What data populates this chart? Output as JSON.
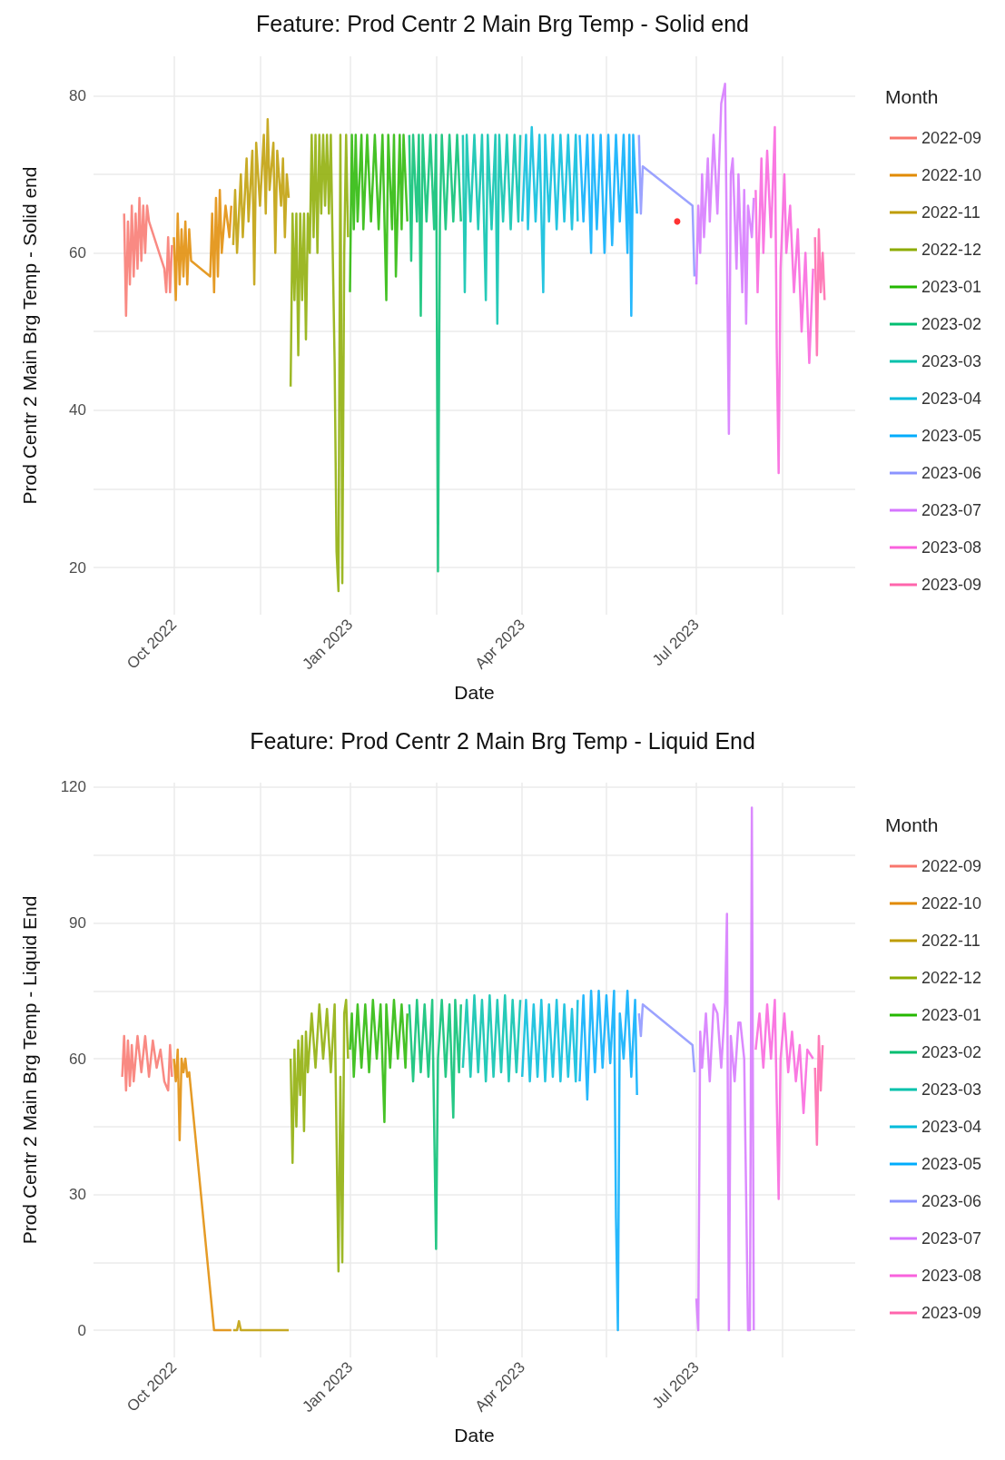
{
  "chart_data": [
    {
      "type": "line",
      "title": "Feature: Prod Centr 2 Main Brg Temp - Solid end",
      "xlabel": "Date",
      "ylabel": "Prod Centr 2 Main Brg Temp - Solid end",
      "legend_title": "Month",
      "legend": "right",
      "grid": true,
      "xlim": [
        "2022-08-20",
        "2023-09-22"
      ],
      "xticks": [
        {
          "value": "2022-10-01",
          "label": "Oct 2022"
        },
        {
          "value": "2022-11-15",
          "label": null
        },
        {
          "value": "2023-01-01",
          "label": "Jan 2023"
        },
        {
          "value": "2023-02-15",
          "label": null
        },
        {
          "value": "2023-04-01",
          "label": "Apr 2023"
        },
        {
          "value": "2023-05-15",
          "label": null
        },
        {
          "value": "2023-07-01",
          "label": "Jul 2023"
        },
        {
          "value": "2023-08-15",
          "label": null
        }
      ],
      "ylim": [
        14,
        85
      ],
      "yticks": [
        20,
        {
          "value": 30,
          "label": null
        },
        40,
        {
          "value": 50,
          "label": null
        },
        60,
        {
          "value": 70,
          "label": null
        },
        80
      ],
      "series": [
        {
          "name": "2022-09",
          "color": "#f8766d",
          "x": [
            "2022-09-05",
            "2022-09-06",
            "2022-09-07",
            "2022-09-08",
            "2022-09-09",
            "2022-09-10",
            "2022-09-11",
            "2022-09-12",
            "2022-09-13",
            "2022-09-14",
            "2022-09-15",
            "2022-09-16",
            "2022-09-17",
            "2022-09-18",
            "2022-09-26",
            "2022-09-27",
            "2022-09-28",
            "2022-09-29",
            "2022-09-30"
          ],
          "values": [
            65,
            52,
            64,
            56,
            66,
            57,
            65,
            58,
            67,
            59,
            66,
            60,
            66,
            64,
            58,
            55,
            62,
            55,
            61
          ]
        },
        {
          "name": "2022-10",
          "color": "#e18a00",
          "x": [
            "2022-10-01",
            "2022-10-02",
            "2022-10-03",
            "2022-10-04",
            "2022-10-05",
            "2022-10-06",
            "2022-10-07",
            "2022-10-08",
            "2022-10-09",
            "2022-10-10",
            "2022-10-20",
            "2022-10-21",
            "2022-10-22",
            "2022-10-23",
            "2022-10-24",
            "2022-10-25",
            "2022-10-26",
            "2022-10-28",
            "2022-10-30",
            "2022-10-31"
          ],
          "values": [
            62,
            54,
            65,
            56,
            63,
            57,
            64,
            56,
            63,
            59,
            57,
            65,
            55,
            67,
            57,
            68,
            60,
            66,
            62,
            66
          ]
        },
        {
          "name": "2022-11",
          "color": "#be9c00",
          "x": [
            "2022-11-01",
            "2022-11-02",
            "2022-11-03",
            "2022-11-05",
            "2022-11-06",
            "2022-11-08",
            "2022-11-09",
            "2022-11-11",
            "2022-11-12",
            "2022-11-13",
            "2022-11-15",
            "2022-11-17",
            "2022-11-18",
            "2022-11-19",
            "2022-11-20",
            "2022-11-22",
            "2022-11-23",
            "2022-11-24",
            "2022-11-26",
            "2022-11-27",
            "2022-11-28",
            "2022-11-29",
            "2022-11-30"
          ],
          "values": [
            61,
            68,
            60,
            70,
            62,
            72,
            64,
            73,
            56,
            74,
            66,
            75,
            65,
            77,
            68,
            74,
            60,
            73,
            66,
            72,
            62,
            70,
            67
          ]
        },
        {
          "name": "2022-12",
          "color": "#8cab00",
          "x": [
            "2022-12-01",
            "2022-12-02",
            "2022-12-03",
            "2022-12-04",
            "2022-12-05",
            "2022-12-06",
            "2022-12-07",
            "2022-12-08",
            "2022-12-09",
            "2022-12-10",
            "2022-12-11",
            "2022-12-12",
            "2022-12-13",
            "2022-12-14",
            "2022-12-15",
            "2022-12-16",
            "2022-12-17",
            "2022-12-18",
            "2022-12-19",
            "2022-12-20",
            "2022-12-21",
            "2022-12-22",
            "2022-12-23",
            "2022-12-24",
            "2022-12-25",
            "2022-12-26",
            "2022-12-27",
            "2022-12-28",
            "2022-12-29",
            "2022-12-30",
            "2022-12-31"
          ],
          "values": [
            43,
            65,
            54,
            65,
            47,
            65,
            54,
            65,
            49,
            65,
            60,
            75,
            62,
            75,
            60,
            75,
            65,
            75,
            66,
            75,
            65,
            75,
            60,
            46,
            22,
            17,
            75,
            18,
            60,
            75,
            62
          ]
        },
        {
          "name": "2023-01",
          "color": "#24b700",
          "x": [
            "2023-01-01",
            "2023-01-02",
            "2023-01-03",
            "2023-01-04",
            "2023-01-05",
            "2023-01-07",
            "2023-01-08",
            "2023-01-10",
            "2023-01-12",
            "2023-01-14",
            "2023-01-16",
            "2023-01-18",
            "2023-01-20",
            "2023-01-21",
            "2023-01-23",
            "2023-01-24",
            "2023-01-25",
            "2023-01-27",
            "2023-01-28",
            "2023-01-29",
            "2023-01-31"
          ],
          "values": [
            55,
            75,
            63,
            75,
            64,
            75,
            63,
            75,
            64,
            75,
            63,
            75,
            54,
            75,
            63,
            75,
            57,
            75,
            63,
            75,
            64
          ]
        },
        {
          "name": "2023-02",
          "color": "#00be70",
          "x": [
            "2023-02-01",
            "2023-02-02",
            "2023-02-03",
            "2023-02-05",
            "2023-02-06",
            "2023-02-07",
            "2023-02-08",
            "2023-02-10",
            "2023-02-12",
            "2023-02-14",
            "2023-02-15",
            "2023-02-16",
            "2023-02-17",
            "2023-02-18",
            "2023-02-20",
            "2023-02-22",
            "2023-02-24",
            "2023-02-26",
            "2023-02-28"
          ],
          "values": [
            75,
            59,
            75,
            64,
            75,
            52,
            75,
            64,
            75,
            63,
            75,
            19.5,
            64,
            75,
            63,
            75,
            64,
            75,
            64
          ]
        },
        {
          "name": "2023-03",
          "color": "#00c1ab",
          "x": [
            "2023-03-01",
            "2023-03-02",
            "2023-03-03",
            "2023-03-05",
            "2023-03-07",
            "2023-03-09",
            "2023-03-11",
            "2023-03-13",
            "2023-03-14",
            "2023-03-16",
            "2023-03-18",
            "2023-03-19",
            "2023-03-20",
            "2023-03-22",
            "2023-03-24",
            "2023-03-26",
            "2023-03-28",
            "2023-03-30",
            "2023-03-31"
          ],
          "values": [
            75,
            55,
            75,
            64,
            75,
            63,
            75,
            54,
            75,
            63,
            75,
            51,
            75,
            64,
            75,
            63,
            75,
            64,
            75
          ]
        },
        {
          "name": "2023-04",
          "color": "#00bbda",
          "x": [
            "2023-04-01",
            "2023-04-03",
            "2023-04-04",
            "2023-04-06",
            "2023-04-08",
            "2023-04-10",
            "2023-04-12",
            "2023-04-13",
            "2023-04-15",
            "2023-04-17",
            "2023-04-19",
            "2023-04-21",
            "2023-04-23",
            "2023-04-25",
            "2023-04-27",
            "2023-04-29",
            "2023-04-30"
          ],
          "values": [
            64,
            75,
            63,
            76,
            64,
            75,
            55,
            75,
            64,
            75,
            63,
            75,
            64,
            75,
            63,
            75,
            64
          ]
        },
        {
          "name": "2023-05",
          "color": "#00acfc",
          "x": [
            "2023-05-01",
            "2023-05-03",
            "2023-05-05",
            "2023-05-07",
            "2023-05-08",
            "2023-05-10",
            "2023-05-12",
            "2023-05-14",
            "2023-05-16",
            "2023-05-18",
            "2023-05-20",
            "2023-05-22",
            "2023-05-24",
            "2023-05-26",
            "2023-05-27",
            "2023-05-28",
            "2023-05-29",
            "2023-05-31"
          ],
          "values": [
            75,
            64,
            75,
            60,
            75,
            63,
            75,
            60,
            75,
            61,
            75,
            64,
            75,
            60,
            75,
            52,
            75,
            65
          ]
        },
        {
          "name": "2023-06",
          "color": "#8b93ff",
          "x": [
            "2023-06-01",
            "2023-06-02",
            "2023-06-03",
            "2023-06-29",
            "2023-06-30"
          ],
          "values": [
            75,
            65,
            71,
            66,
            57
          ]
        },
        {
          "name": "2023-07",
          "color": "#d575fe",
          "x": [
            "2023-07-01",
            "2023-07-02",
            "2023-07-03",
            "2023-07-04",
            "2023-07-05",
            "2023-07-07",
            "2023-07-08",
            "2023-07-10",
            "2023-07-12",
            "2023-07-14",
            "2023-07-16",
            "2023-07-17",
            "2023-07-18",
            "2023-07-19",
            "2023-07-20",
            "2023-07-22",
            "2023-07-23",
            "2023-07-25",
            "2023-07-26",
            "2023-07-27",
            "2023-07-28",
            "2023-07-30",
            "2023-07-31"
          ],
          "values": [
            56,
            66,
            60,
            70,
            62,
            72,
            64,
            75,
            65,
            79,
            81.5,
            60,
            37,
            70,
            72,
            58,
            70,
            55,
            68,
            51,
            66,
            62,
            67
          ]
        },
        {
          "name": "2023-08",
          "color": "#f962dd",
          "x": [
            "2023-08-01",
            "2023-08-02",
            "2023-08-04",
            "2023-08-05",
            "2023-08-07",
            "2023-08-09",
            "2023-08-11",
            "2023-08-12",
            "2023-08-13",
            "2023-08-14",
            "2023-08-16",
            "2023-08-17",
            "2023-08-19",
            "2023-08-21",
            "2023-08-23",
            "2023-08-25",
            "2023-08-27",
            "2023-08-29",
            "2023-08-31"
          ],
          "values": [
            68,
            55,
            72,
            60,
            73,
            62,
            76,
            48,
            32,
            58,
            70,
            60,
            66,
            55,
            63,
            50,
            60,
            46,
            58
          ]
        },
        {
          "name": "2023-09",
          "color": "#ff65ac",
          "x": [
            "2023-09-01",
            "2023-09-02",
            "2023-09-03",
            "2023-09-04",
            "2023-09-05",
            "2023-09-06"
          ],
          "values": [
            62,
            47,
            63,
            55,
            60,
            54
          ]
        },
        {
          "type": "scatter",
          "color": "#ff0000",
          "x": [
            "2023-06-21"
          ],
          "values": [
            64
          ]
        }
      ]
    },
    {
      "type": "line",
      "title": "Feature: Prod Centr 2 Main Brg Temp - Liquid End",
      "xlabel": "Date",
      "ylabel": "Prod Centr 2 Main Brg Temp - Liquid End",
      "legend_title": "Month",
      "legend": "right",
      "grid": true,
      "xlim": [
        "2022-08-20",
        "2023-09-22"
      ],
      "xticks": [
        {
          "value": "2022-10-01",
          "label": "Oct 2022"
        },
        {
          "value": "2022-11-15",
          "label": null
        },
        {
          "value": "2023-01-01",
          "label": "Jan 2023"
        },
        {
          "value": "2023-02-15",
          "label": null
        },
        {
          "value": "2023-04-01",
          "label": "Apr 2023"
        },
        {
          "value": "2023-05-15",
          "label": null
        },
        {
          "value": "2023-07-01",
          "label": "Jul 2023"
        },
        {
          "value": "2023-08-15",
          "label": null
        }
      ],
      "ylim": [
        -6,
        121
      ],
      "yticks": [
        0,
        {
          "value": 15,
          "label": null
        },
        30,
        {
          "value": 45,
          "label": null
        },
        60,
        {
          "value": 75,
          "label": null
        },
        90,
        {
          "value": 105,
          "label": null
        },
        120
      ],
      "series": [
        {
          "name": "2022-09",
          "color": "#f8766d",
          "x": [
            "2022-09-04",
            "2022-09-05",
            "2022-09-06",
            "2022-09-07",
            "2022-09-08",
            "2022-09-09",
            "2022-09-10",
            "2022-09-12",
            "2022-09-14",
            "2022-09-16",
            "2022-09-18",
            "2022-09-20",
            "2022-09-22",
            "2022-09-24",
            "2022-09-26",
            "2022-09-28",
            "2022-09-29",
            "2022-09-30"
          ],
          "values": [
            56,
            65,
            53,
            64,
            54,
            63,
            55,
            65,
            57,
            65,
            56,
            64,
            58,
            62,
            55,
            53,
            63,
            56
          ]
        },
        {
          "name": "2022-10",
          "color": "#e18a00",
          "x": [
            "2022-10-01",
            "2022-10-02",
            "2022-10-03",
            "2022-10-04",
            "2022-10-05",
            "2022-10-06",
            "2022-10-07",
            "2022-10-08",
            "2022-10-09",
            "2022-10-22",
            "2022-10-31"
          ],
          "values": [
            60,
            55,
            62,
            42,
            60,
            57,
            60,
            56,
            57,
            0,
            0
          ]
        },
        {
          "name": "2022-11",
          "color": "#be9c00",
          "x": [
            "2022-11-01",
            "2022-11-03",
            "2022-11-04",
            "2022-11-05",
            "2022-11-30"
          ],
          "values": [
            0,
            0,
            2,
            0,
            0
          ]
        },
        {
          "name": "2022-12",
          "color": "#8cab00",
          "x": [
            "2022-12-01",
            "2022-12-02",
            "2022-12-03",
            "2022-12-04",
            "2022-12-05",
            "2022-12-06",
            "2022-12-07",
            "2022-12-08",
            "2022-12-09",
            "2022-12-10",
            "2022-12-12",
            "2022-12-14",
            "2022-12-16",
            "2022-12-18",
            "2022-12-20",
            "2022-12-22",
            "2022-12-24",
            "2022-12-26",
            "2022-12-27",
            "2022-12-28",
            "2022-12-29",
            "2022-12-30",
            "2022-12-31"
          ],
          "values": [
            60,
            37,
            62,
            45,
            64,
            52,
            65,
            44,
            66,
            57,
            70,
            58,
            72,
            60,
            71,
            57,
            72,
            13,
            56,
            15,
            70,
            73,
            60
          ]
        },
        {
          "name": "2023-01",
          "color": "#24b700",
          "x": [
            "2023-01-01",
            "2023-01-02",
            "2023-01-03",
            "2023-01-05",
            "2023-01-07",
            "2023-01-09",
            "2023-01-11",
            "2023-01-13",
            "2023-01-15",
            "2023-01-17",
            "2023-01-19",
            "2023-01-20",
            "2023-01-22",
            "2023-01-24",
            "2023-01-26",
            "2023-01-28",
            "2023-01-30",
            "2023-01-31"
          ],
          "values": [
            62,
            70,
            56,
            72,
            58,
            72,
            57,
            73,
            60,
            72,
            46,
            72,
            58,
            73,
            60,
            72,
            58,
            70
          ]
        },
        {
          "name": "2023-02",
          "color": "#00be70",
          "x": [
            "2023-02-01",
            "2023-02-03",
            "2023-02-05",
            "2023-02-07",
            "2023-02-09",
            "2023-02-11",
            "2023-02-13",
            "2023-02-15",
            "2023-02-16",
            "2023-02-18",
            "2023-02-20",
            "2023-02-22",
            "2023-02-24",
            "2023-02-25",
            "2023-02-27",
            "2023-02-28"
          ],
          "values": [
            72,
            55,
            73,
            57,
            72,
            56,
            73,
            18,
            60,
            73,
            56,
            72,
            47,
            73,
            57,
            72
          ]
        },
        {
          "name": "2023-03",
          "color": "#00c1ab",
          "x": [
            "2023-03-01",
            "2023-03-03",
            "2023-03-05",
            "2023-03-07",
            "2023-03-09",
            "2023-03-11",
            "2023-03-13",
            "2023-03-15",
            "2023-03-17",
            "2023-03-19",
            "2023-03-21",
            "2023-03-23",
            "2023-03-25",
            "2023-03-27",
            "2023-03-29",
            "2023-03-31"
          ],
          "values": [
            58,
            73,
            56,
            74,
            57,
            73,
            55,
            74,
            56,
            73,
            57,
            74,
            55,
            73,
            57,
            73
          ]
        },
        {
          "name": "2023-04",
          "color": "#00bbda",
          "x": [
            "2023-04-01",
            "2023-04-03",
            "2023-04-05",
            "2023-04-07",
            "2023-04-09",
            "2023-04-11",
            "2023-04-13",
            "2023-04-15",
            "2023-04-17",
            "2023-04-19",
            "2023-04-21",
            "2023-04-23",
            "2023-04-25",
            "2023-04-27",
            "2023-04-29",
            "2023-04-30"
          ],
          "values": [
            56,
            73,
            55,
            72,
            56,
            73,
            55,
            72,
            56,
            73,
            55,
            72,
            56,
            71,
            55,
            73
          ]
        },
        {
          "name": "2023-05",
          "color": "#00acfc",
          "x": [
            "2023-05-01",
            "2023-05-03",
            "2023-05-05",
            "2023-05-07",
            "2023-05-09",
            "2023-05-11",
            "2023-05-13",
            "2023-05-15",
            "2023-05-17",
            "2023-05-19",
            "2023-05-20",
            "2023-05-21",
            "2023-05-22",
            "2023-05-24",
            "2023-05-26",
            "2023-05-28",
            "2023-05-30",
            "2023-05-31"
          ],
          "values": [
            55,
            74,
            51,
            75,
            57,
            75,
            58,
            74,
            59,
            75,
            25,
            0,
            70,
            60,
            75,
            56,
            73,
            52
          ]
        },
        {
          "name": "2023-06",
          "color": "#8b93ff",
          "x": [
            "2023-06-01",
            "2023-06-02",
            "2023-06-03",
            "2023-06-29",
            "2023-06-30"
          ],
          "values": [
            70,
            65,
            72,
            63,
            57
          ]
        },
        {
          "name": "2023-07",
          "color": "#d575fe",
          "x": [
            "2023-07-01",
            "2023-07-02",
            "2023-07-03",
            "2023-07-04",
            "2023-07-06",
            "2023-07-08",
            "2023-07-10",
            "2023-07-12",
            "2023-07-14",
            "2023-07-16",
            "2023-07-17",
            "2023-07-18",
            "2023-07-19",
            "2023-07-21",
            "2023-07-23",
            "2023-07-24",
            "2023-07-26",
            "2023-07-28",
            "2023-07-29",
            "2023-07-30",
            "2023-07-31"
          ],
          "values": [
            7,
            0,
            66,
            58,
            70,
            55,
            72,
            70,
            58,
            72,
            92,
            0,
            65,
            55,
            68,
            68,
            60,
            0,
            0,
            115.5,
            0
          ]
        },
        {
          "name": "2023-08",
          "color": "#f962dd",
          "x": [
            "2023-08-01",
            "2023-08-03",
            "2023-08-05",
            "2023-08-07",
            "2023-08-09",
            "2023-08-11",
            "2023-08-13",
            "2023-08-14",
            "2023-08-16",
            "2023-08-18",
            "2023-08-20",
            "2023-08-22",
            "2023-08-24",
            "2023-08-26",
            "2023-08-28",
            "2023-08-31"
          ],
          "values": [
            62,
            70,
            58,
            72,
            60,
            73,
            29,
            60,
            70,
            57,
            66,
            55,
            63,
            48,
            62,
            60
          ]
        },
        {
          "name": "2023-09",
          "color": "#ff65ac",
          "x": [
            "2023-09-01",
            "2023-09-02",
            "2023-09-03",
            "2023-09-04",
            "2023-09-05"
          ],
          "values": [
            58,
            41,
            65,
            53,
            63
          ]
        }
      ]
    }
  ]
}
